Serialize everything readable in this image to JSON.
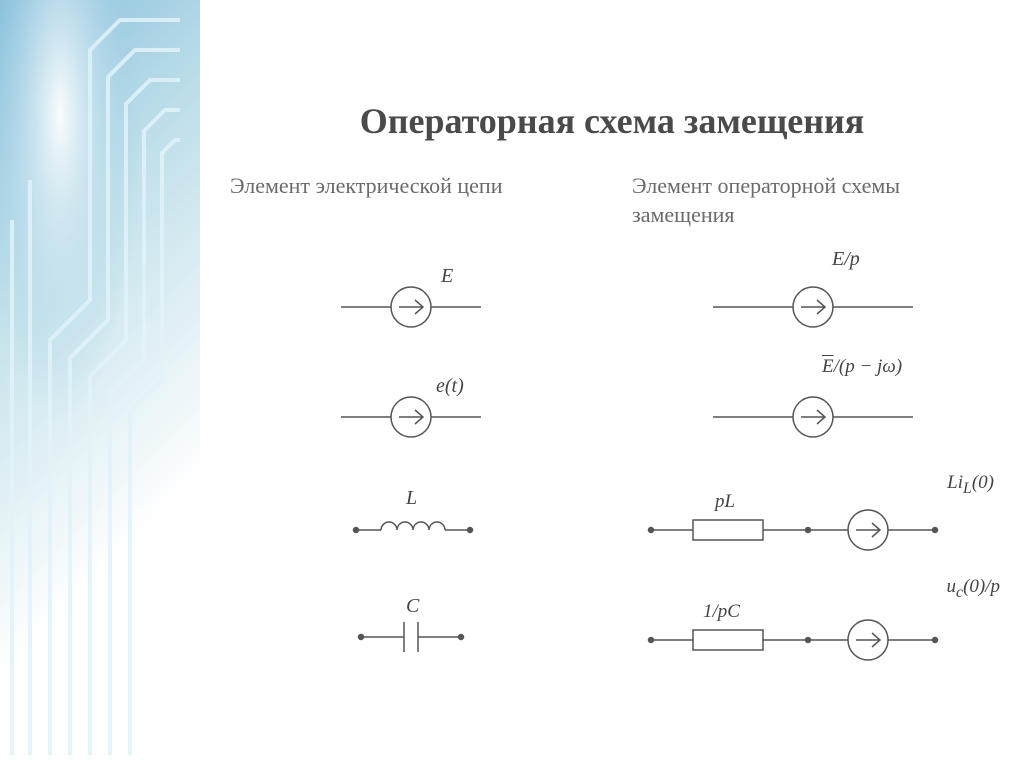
{
  "title": "Операторная схема замещения",
  "left_header": "Элемент электрической цепи",
  "right_header": "Элемент операторной схемы замещения",
  "rows": {
    "r1": {
      "left_label": "E",
      "right_label_html": "<span class='italic'>E/p</span>"
    },
    "r2": {
      "left_label": "e(t)",
      "right_label_html": "<span style='text-decoration:overline'>E</span>/(p − jω)"
    },
    "r3": {
      "left_label": "L",
      "right_label_box": "pL",
      "right_label_src": "Li<sub>L</sub>(0)"
    },
    "r4": {
      "left_label": "C",
      "right_label_box": "1/pC",
      "right_label_src": "u<sub>c</sub>(0)/p"
    }
  },
  "styling": {
    "stroke_color": "#555555",
    "stroke_width": 1.5,
    "text_color": "#444444",
    "title_color": "#4a4a4a",
    "header_color": "#6a6a6a",
    "label_fontsize_pt": 18,
    "title_fontsize_pt": 28,
    "header_fontsize_pt": 18,
    "bg_gradient_from": "#7ab8d8",
    "bg_gradient_mid": "#b8dce8",
    "bg_gradient_to": "#ffffff",
    "circuit_line_color": "#c8e4f0"
  }
}
